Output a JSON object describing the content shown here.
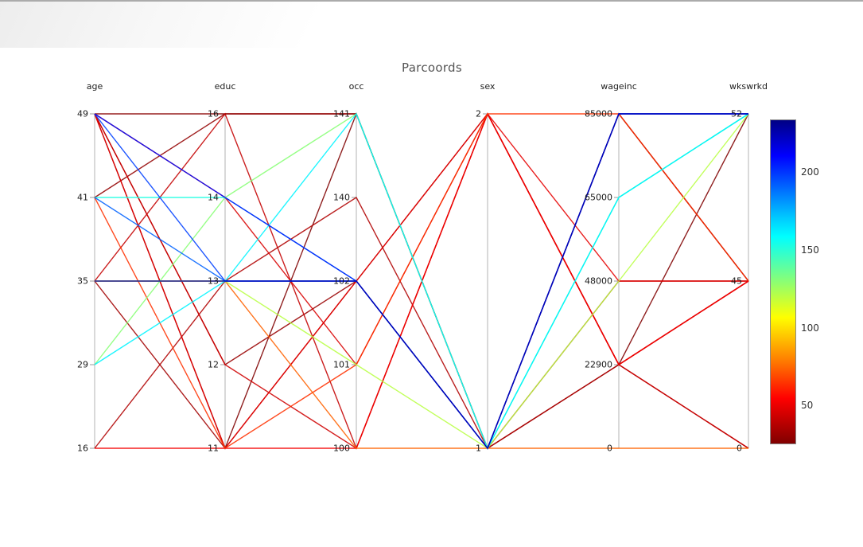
{
  "page": {
    "title": "Parcoords"
  },
  "chart_data": {
    "type": "parallel-coordinates",
    "title": "Parcoords",
    "legend_position": "colorbar-right",
    "grid": false,
    "axes": [
      {
        "name": "age",
        "ticks": [
          "49",
          "41",
          "35",
          "29",
          "16"
        ]
      },
      {
        "name": "educ",
        "ticks": [
          "16",
          "14",
          "13",
          "12",
          "11"
        ]
      },
      {
        "name": "occ",
        "ticks": [
          "141",
          "140",
          "102",
          "101",
          "100"
        ]
      },
      {
        "name": "sex",
        "ticks": [
          "2",
          "1"
        ]
      },
      {
        "name": "wageinc",
        "ticks": [
          "85000",
          "65000",
          "48000",
          "22900",
          "0"
        ]
      },
      {
        "name": "wkswrkd",
        "ticks": [
          "52",
          "45",
          "0"
        ]
      }
    ],
    "records": [
      {
        "values": [
          "49",
          "11",
          "141",
          "1",
          "22900",
          "52"
        ],
        "c": 26
      },
      {
        "values": [
          "49",
          "16",
          "141",
          "1",
          "85000",
          "45"
        ],
        "c": 28
      },
      {
        "values": [
          "41",
          "16",
          "141",
          "1",
          "85000",
          "45"
        ],
        "c": 30
      },
      {
        "values": [
          "49",
          "12",
          "102",
          "2",
          "22900",
          "0"
        ],
        "c": 31
      },
      {
        "values": [
          "35",
          "11",
          "102",
          "1",
          "48000",
          "45"
        ],
        "c": 33
      },
      {
        "values": [
          "16",
          "13",
          "140",
          "1",
          "22900",
          "45"
        ],
        "c": 36
      },
      {
        "values": [
          "35",
          "16",
          "100",
          "2",
          "22900",
          "45"
        ],
        "c": 40
      },
      {
        "values": [
          "49",
          "12",
          "100",
          "2",
          "22900",
          "0"
        ],
        "c": 42
      },
      {
        "values": [
          "49",
          "14",
          "101",
          "2",
          "22900",
          "45"
        ],
        "c": 44
      },
      {
        "values": [
          "49",
          "11",
          "102",
          "2",
          "48000",
          "45"
        ],
        "c": 47
      },
      {
        "values": [
          "16",
          "11",
          "100",
          "2",
          "22900",
          "45"
        ],
        "c": 50
      },
      {
        "values": [
          "41",
          "11",
          "101",
          "2",
          "85000",
          "45"
        ],
        "c": 62
      },
      {
        "values": [
          "35",
          "13",
          "100",
          "1",
          "0",
          "0"
        ],
        "c": 72
      },
      {
        "values": [
          "35",
          "13",
          "101",
          "1",
          "48000",
          "52"
        ],
        "c": 118
      },
      {
        "values": [
          "29",
          "14",
          "141",
          "1",
          "65000",
          "52"
        ],
        "c": 128
      },
      {
        "values": [
          "41",
          "14",
          "102",
          "1",
          "65000",
          "52"
        ],
        "c": 150
      },
      {
        "values": [
          "29",
          "13",
          "141",
          "1",
          "65000",
          "52"
        ],
        "c": 158
      },
      {
        "values": [
          "41",
          "13",
          "102",
          "1",
          "85000",
          "52"
        ],
        "c": 188
      },
      {
        "values": [
          "49",
          "13",
          "102",
          "1",
          "85000",
          "52"
        ],
        "c": 195
      },
      {
        "values": [
          "49",
          "14",
          "102",
          "1",
          "85000",
          "52"
        ],
        "c": 205
      },
      {
        "values": [
          "35",
          "13",
          "102",
          "1",
          "85000",
          "52"
        ],
        "c": 225
      }
    ],
    "colorbar": {
      "colormap": "jet-reversed",
      "vmin": 26,
      "vmax": 234,
      "ticks": [
        200,
        150,
        100,
        50
      ]
    }
  }
}
